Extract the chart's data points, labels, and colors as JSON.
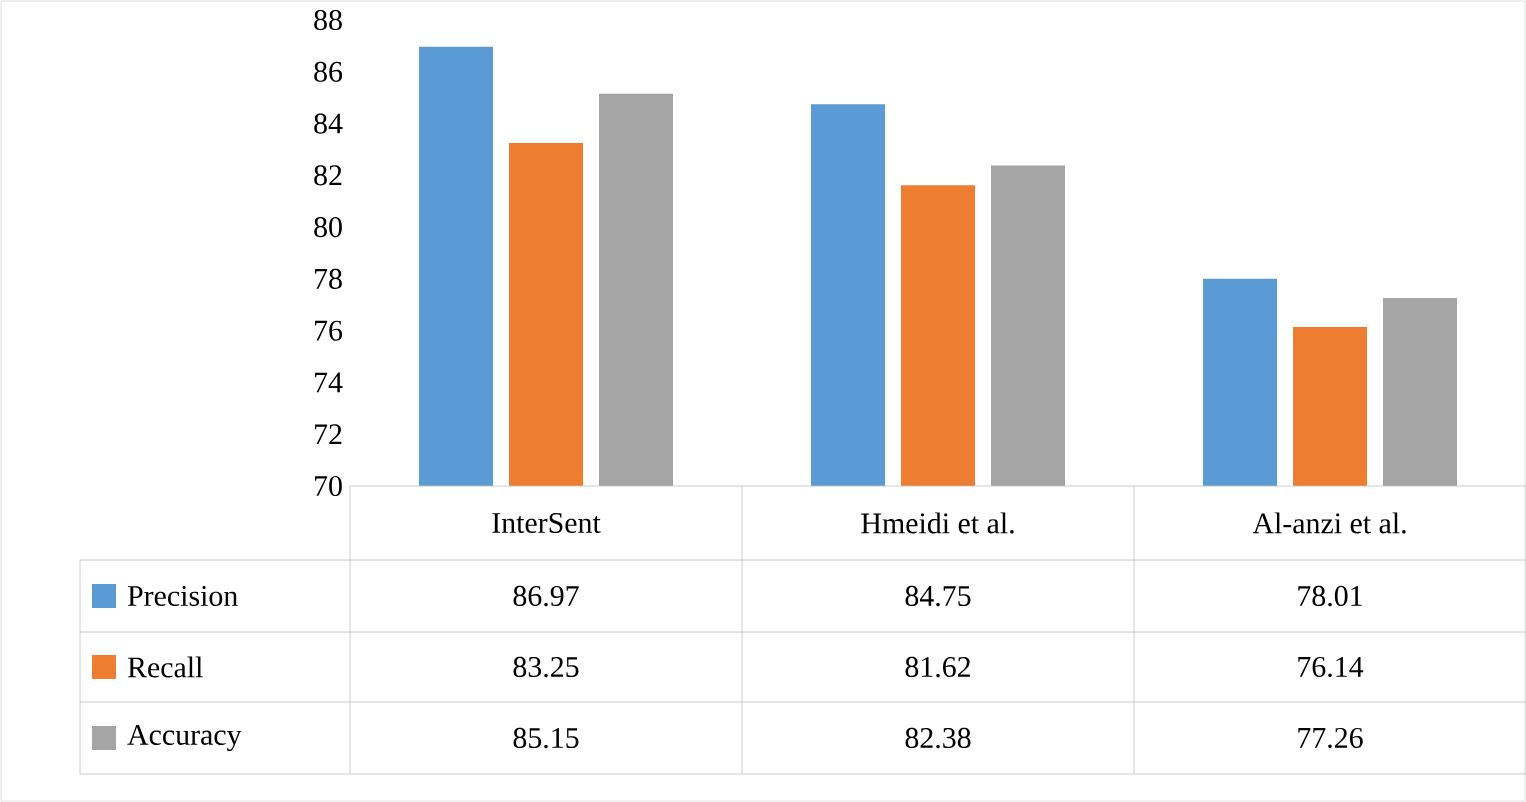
{
  "chart_data": {
    "type": "bar",
    "categories": [
      "InterSent",
      "Hmeidi et al.",
      "Al-anzi et al."
    ],
    "series": [
      {
        "name": "Precision",
        "color": "#5b9bd5",
        "values": [
          86.97,
          84.75,
          78.01
        ]
      },
      {
        "name": "Recall",
        "color": "#ed7d31",
        "values": [
          83.25,
          81.62,
          76.14
        ]
      },
      {
        "name": "Accuracy",
        "color": "#a5a5a5",
        "values": [
          85.15,
          82.38,
          77.26
        ]
      }
    ],
    "ylim": [
      70,
      88
    ],
    "yticks": [
      70,
      72,
      74,
      76,
      78,
      80,
      82,
      84,
      86,
      88
    ],
    "data_labels": true,
    "legend": "bottom",
    "grid": false
  }
}
